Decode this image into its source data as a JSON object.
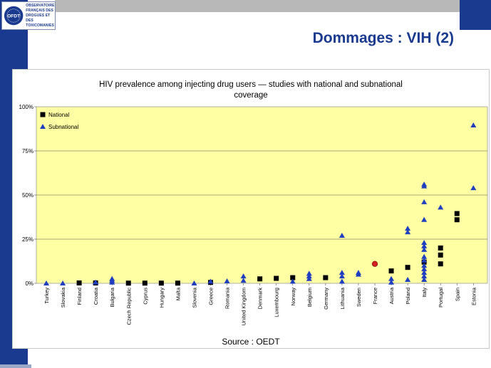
{
  "slide": {
    "title": "Dommages : VIH (2)",
    "logo": {
      "seal_text": "OFDT",
      "lines": [
        "OBSERVATOIRE",
        "FRANÇAIS DES",
        "DROGUES ET DES",
        "TOXICOMANIES"
      ]
    },
    "colors": {
      "brand_blue": "#1a3a8f",
      "plot_bg": "#ffffa3",
      "grey_bar": "#b8b8b8"
    }
  },
  "chart_data": {
    "type": "scatter",
    "title": "HIV prevalence among injecting drug users — studies with national and subnational coverage",
    "title_lines": [
      "HIV prevalence among injecting drug users — studies with national and subnational",
      "coverage"
    ],
    "source": "Source : OEDT",
    "xlabel": "",
    "ylabel": "",
    "ylim": [
      0,
      100
    ],
    "y_ticks": [
      0,
      25,
      50,
      75,
      100
    ],
    "y_tick_labels": [
      "0%",
      "25%",
      "50%",
      "75%",
      "100%"
    ],
    "grid": true,
    "legend_position": "top-left",
    "categories": [
      "Turkey",
      "Slovakia",
      "Finland",
      "Croatia",
      "Bulgaria",
      "Czech Republic",
      "Cyprus",
      "Hungary",
      "Malta",
      "Slovenia",
      "Greece",
      "Romania",
      "United Kingdom",
      "Denmark",
      "Luxembourg",
      "Norway",
      "Belgium",
      "Germany",
      "Lithuania",
      "Sweden",
      "France",
      "Austria",
      "Poland",
      "Italy",
      "Portugal",
      "Spain",
      "Estonia"
    ],
    "series": [
      {
        "name": "National",
        "marker": "square",
        "color": "#000000",
        "points": [
          {
            "x": "Finland",
            "y": 0.2
          },
          {
            "x": "Croatia",
            "y": 0.2
          },
          {
            "x": "Czech Republic",
            "y": 0.1
          },
          {
            "x": "Cyprus",
            "y": 0.1
          },
          {
            "x": "Hungary",
            "y": 0.1
          },
          {
            "x": "Malta",
            "y": 0.1
          },
          {
            "x": "Greece",
            "y": 0.5
          },
          {
            "x": "Denmark",
            "y": 2.5
          },
          {
            "x": "Luxembourg",
            "y": 2.8
          },
          {
            "x": "Norway",
            "y": 3.2
          },
          {
            "x": "Germany",
            "y": 3.2
          },
          {
            "x": "Austria",
            "y": 7
          },
          {
            "x": "Poland",
            "y": 9
          },
          {
            "x": "Italy",
            "y": 12
          },
          {
            "x": "Portugal",
            "y": 11
          },
          {
            "x": "Portugal",
            "y": 16
          },
          {
            "x": "Portugal",
            "y": 20
          },
          {
            "x": "Spain",
            "y": 36
          },
          {
            "x": "Spain",
            "y": 39.5
          }
        ]
      },
      {
        "name": "Subnational",
        "marker": "triangle",
        "color": "#1f3fbf",
        "points": [
          {
            "x": "Turkey",
            "y": 0
          },
          {
            "x": "Slovakia",
            "y": 0
          },
          {
            "x": "Croatia",
            "y": 0.5
          },
          {
            "x": "Bulgaria",
            "y": 0.5
          },
          {
            "x": "Bulgaria",
            "y": 1.5
          },
          {
            "x": "Bulgaria",
            "y": 2.5
          },
          {
            "x": "Slovenia",
            "y": 0
          },
          {
            "x": "Greece",
            "y": 1
          },
          {
            "x": "Romania",
            "y": 1.2
          },
          {
            "x": "United Kingdom",
            "y": 1.5
          },
          {
            "x": "United Kingdom",
            "y": 4
          },
          {
            "x": "Norway",
            "y": 1
          },
          {
            "x": "Belgium",
            "y": 2.5
          },
          {
            "x": "Belgium",
            "y": 4
          },
          {
            "x": "Belgium",
            "y": 5.5
          },
          {
            "x": "Lithuania",
            "y": 1
          },
          {
            "x": "Lithuania",
            "y": 4
          },
          {
            "x": "Lithuania",
            "y": 6
          },
          {
            "x": "Lithuania",
            "y": 27
          },
          {
            "x": "Sweden",
            "y": 5
          },
          {
            "x": "Sweden",
            "y": 6
          },
          {
            "x": "Austria",
            "y": 0.5
          },
          {
            "x": "Austria",
            "y": 2.5
          },
          {
            "x": "Poland",
            "y": 2
          },
          {
            "x": "Poland",
            "y": 29
          },
          {
            "x": "Poland",
            "y": 31
          },
          {
            "x": "Italy",
            "y": 2
          },
          {
            "x": "Italy",
            "y": 4
          },
          {
            "x": "Italy",
            "y": 6
          },
          {
            "x": "Italy",
            "y": 8
          },
          {
            "x": "Italy",
            "y": 10
          },
          {
            "x": "Italy",
            "y": 13
          },
          {
            "x": "Italy",
            "y": 15
          },
          {
            "x": "Italy",
            "y": 19
          },
          {
            "x": "Italy",
            "y": 21
          },
          {
            "x": "Italy",
            "y": 23
          },
          {
            "x": "Italy",
            "y": 36
          },
          {
            "x": "Italy",
            "y": 46
          },
          {
            "x": "Italy",
            "y": 55
          },
          {
            "x": "Italy",
            "y": 56
          },
          {
            "x": "Portugal",
            "y": 43
          },
          {
            "x": "Estonia",
            "y": 54
          },
          {
            "x": "Estonia",
            "y": 89.5
          }
        ]
      },
      {
        "marker": "circle",
        "color": "#d42020",
        "points": [
          {
            "x": "France",
            "y": 11
          }
        ]
      }
    ]
  }
}
